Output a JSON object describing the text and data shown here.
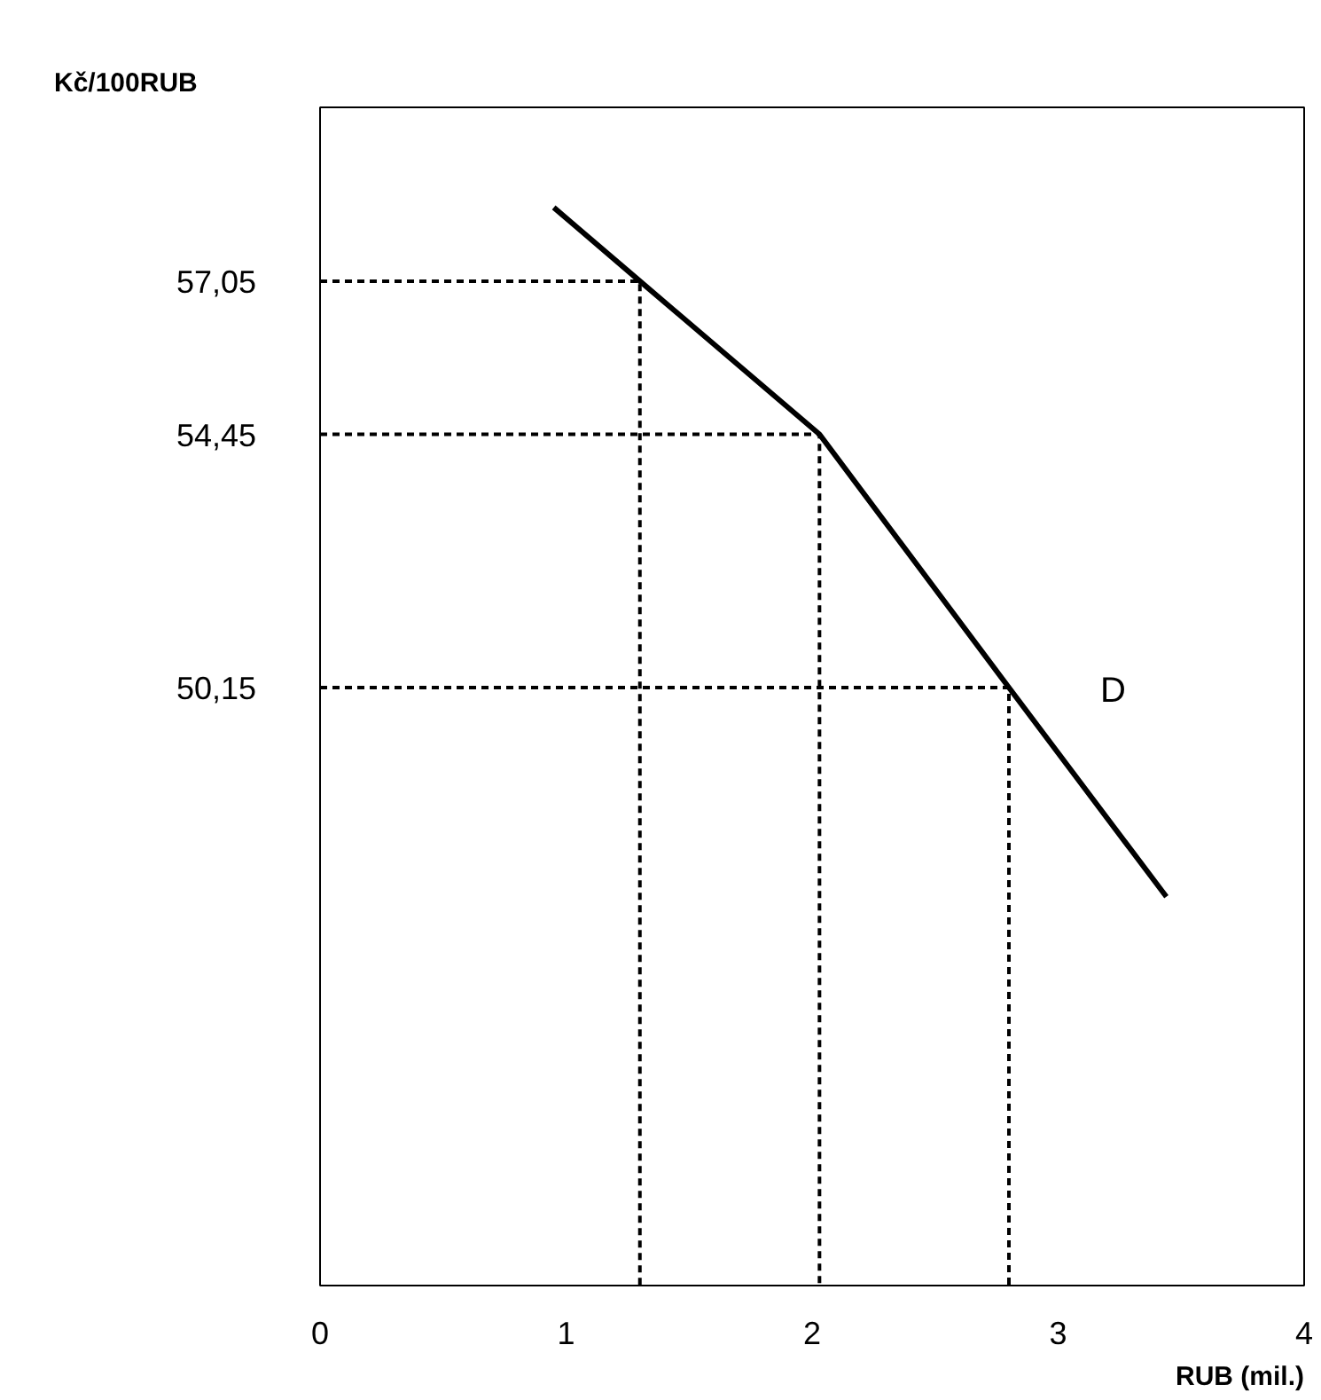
{
  "chart_data": {
    "type": "line",
    "xlabel": "RUB (mil.)",
    "ylabel": "Kč/100RUB",
    "xlim": [
      0,
      4
    ],
    "xticks": [
      0,
      1,
      2,
      3,
      4
    ],
    "ylim": [
      40,
      60
    ],
    "yticks": [
      {
        "value": 57.05,
        "label": "57,05"
      },
      {
        "value": 54.45,
        "label": "54,45"
      },
      {
        "value": 50.15,
        "label": "50,15"
      }
    ],
    "grid": false,
    "tick_labels": "xy",
    "series": [
      {
        "color": "#000000",
        "line_style": "solid",
        "x": [
          0.95,
          1.3,
          2.03,
          2.8,
          3.44
        ],
        "values": [
          58.3,
          57.05,
          54.45,
          50.15,
          46.6
        ]
      },
      {
        "color": "#000000",
        "line_style": "dashed",
        "x": [
          0,
          1.3,
          1.3
        ],
        "values": [
          57.05,
          57.05,
          40
        ]
      },
      {
        "color": "#000000",
        "line_style": "dashed",
        "x": [
          0,
          2.03,
          2.03
        ],
        "values": [
          54.45,
          54.45,
          40
        ]
      },
      {
        "color": "#000000",
        "line_style": "dashed",
        "x": [
          0,
          2.8,
          2.8
        ],
        "values": [
          50.15,
          50.15,
          40
        ]
      }
    ],
    "annotations": [
      "D"
    ]
  }
}
